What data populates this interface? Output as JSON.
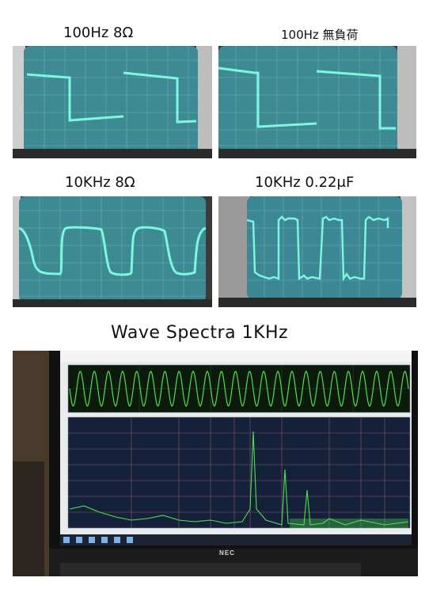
{
  "captions": {
    "top_left": "100Hz  8Ω",
    "top_right": "100Hz  無負荷",
    "mid_left": "10KHz 8Ω",
    "mid_right": "10KHz 0.22μF",
    "bottom_title": "Wave Spectra   1KHz"
  },
  "laptop": {
    "brand": "NEC"
  },
  "colors": {
    "scope_screen": "#3d8a93",
    "trace": "#7ff7e0",
    "spectrum_bg": "#15203a",
    "spectrum_trace": "#4fe04f"
  },
  "photos": [
    "oscilloscope-100hz-8ohm",
    "oscilloscope-100hz-no-load",
    "oscilloscope-10khz-8ohm",
    "oscilloscope-10khz-capacitive-load",
    "laptop-wave-spectra-screen"
  ]
}
